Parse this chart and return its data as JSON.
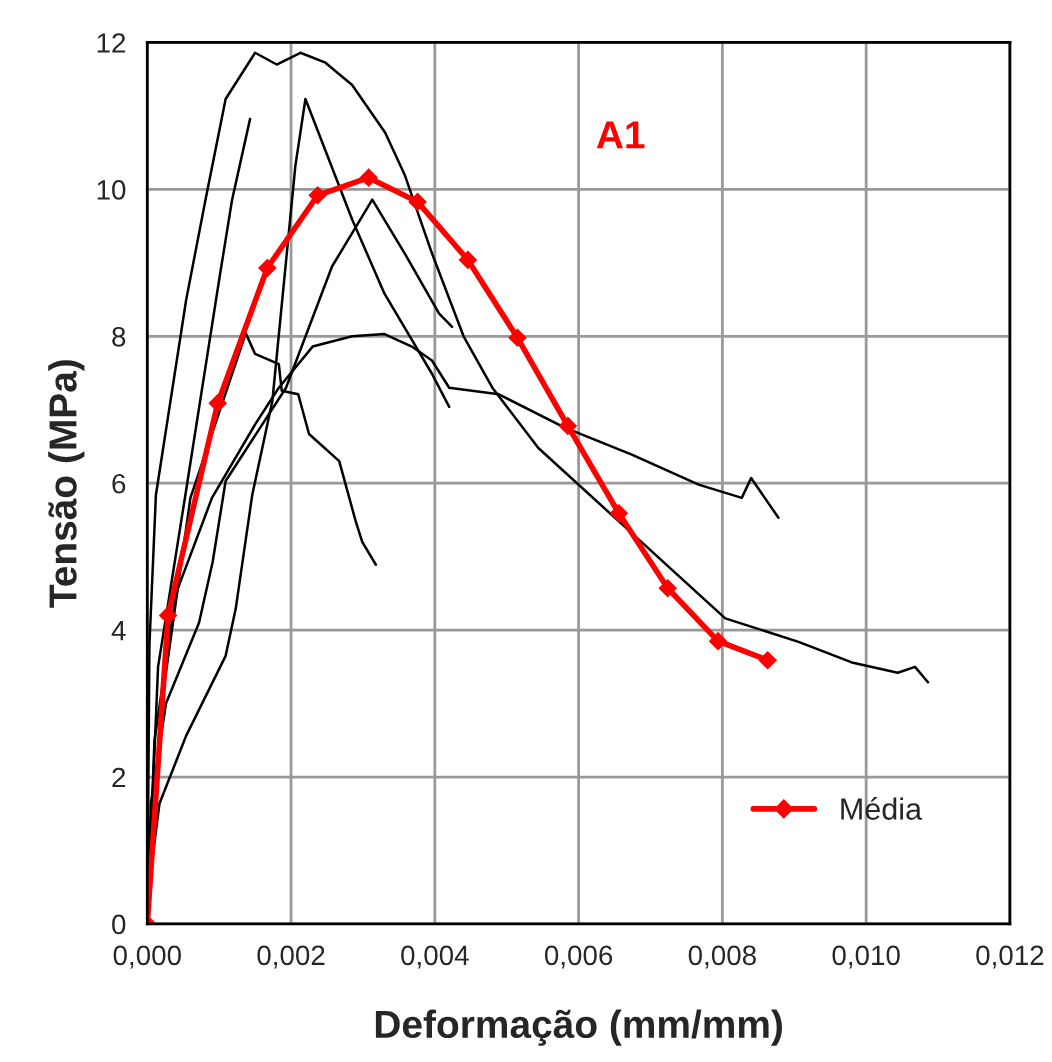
{
  "chart_data": {
    "type": "line",
    "xlabel": "Deformação (mm/mm)",
    "ylabel": "Tensão (MPa)",
    "annotations": [
      "A1"
    ],
    "xlim": [
      0,
      0.012
    ],
    "ylim": [
      0,
      12
    ],
    "xticks": [
      {
        "value": 0,
        "label": "0,000"
      },
      {
        "value": 0.002,
        "label": "0,002"
      },
      {
        "value": 0.004,
        "label": "0,004"
      },
      {
        "value": 0.006,
        "label": "0,006"
      },
      {
        "value": 0.008,
        "label": "0,008"
      },
      {
        "value": 0.01,
        "label": "0,010"
      },
      {
        "value": 0.012,
        "label": "0,012"
      }
    ],
    "yticks": [
      0,
      2,
      4,
      6,
      8,
      10,
      12
    ],
    "grid": true,
    "legend": "bottom right",
    "series": [
      {
        "color": "#000000",
        "marker": "none",
        "x": [
          0,
          3e-05,
          0.00012,
          0.00054,
          0.00081,
          0.00109,
          0.0015,
          0.0018,
          0.00213,
          0.00247,
          0.00285,
          0.00331,
          0.00358,
          0.00396,
          0.0044,
          0.0048,
          0.00544,
          0.00656,
          0.00804,
          0.00906,
          0.0098,
          0.01044,
          0.01068,
          0.01086
        ],
        "values": [
          0,
          3.8,
          5.84,
          8.49,
          9.86,
          11.23,
          11.86,
          11.7,
          11.86,
          11.73,
          11.42,
          10.77,
          10.2,
          9.13,
          8.0,
          7.3,
          6.48,
          5.48,
          4.16,
          3.84,
          3.56,
          3.42,
          3.5,
          3.29
        ]
      },
      {
        "color": "#000000",
        "marker": "none",
        "x": [
          0,
          0.00015,
          0.00053,
          0.001,
          0.00118,
          0.00143
        ],
        "values": [
          0,
          3.5,
          5.84,
          8.77,
          9.86,
          10.96
        ]
      },
      {
        "color": "#000000",
        "marker": "none",
        "x": [
          0,
          0.0002,
          0.0006,
          0.00137,
          0.0015,
          0.00183,
          0.00187,
          0.0021,
          0.00225,
          0.00267,
          0.0029,
          0.00299,
          0.00318
        ],
        "values": [
          0,
          3.0,
          5.8,
          8.04,
          7.76,
          7.62,
          7.26,
          7.21,
          6.67,
          6.3,
          5.48,
          5.2,
          4.89
        ]
      },
      {
        "color": "#000000",
        "marker": "none",
        "x": [
          0,
          5e-05,
          0.00017,
          0.00054,
          0.00109,
          0.00123,
          0.00146,
          0.00174,
          0.00206,
          0.0022,
          0.00285,
          0.0033,
          0.00396,
          0.0042
        ],
        "values": [
          0,
          0.73,
          1.64,
          2.56,
          3.65,
          4.29,
          5.84,
          7.12,
          10.32,
          11.23,
          9.59,
          8.58,
          7.49,
          7.04
        ]
      },
      {
        "color": "#000000",
        "marker": "none",
        "x": [
          0,
          5e-05,
          0.00026,
          0.00072,
          0.00091,
          0.00109,
          0.00193,
          0.00257,
          0.00313,
          0.00358,
          0.00406,
          0.00424
        ],
        "values": [
          0,
          1.64,
          3.0,
          4.1,
          4.93,
          6.03,
          7.3,
          8.95,
          9.86,
          9.13,
          8.31,
          8.13
        ]
      },
      {
        "color": "#000000",
        "marker": "none",
        "x": [
          0,
          0.0001,
          0.0004,
          0.0009,
          0.0015,
          0.00183,
          0.0023,
          0.00285,
          0.0033,
          0.00368,
          0.00396,
          0.0042,
          0.00489,
          0.0058,
          0.00674,
          0.00767,
          0.00827,
          0.0084,
          0.00878
        ],
        "values": [
          0,
          2.5,
          4.5,
          5.8,
          6.8,
          7.3,
          7.86,
          8.0,
          8.03,
          7.86,
          7.67,
          7.3,
          7.21,
          6.76,
          6.39,
          5.98,
          5.8,
          6.07,
          5.53
        ]
      },
      {
        "name": "Média",
        "color": "#ff0000",
        "marker": "diamond",
        "x": [
          0,
          0.00029,
          0.00098,
          0.00167,
          0.00237,
          0.00308,
          0.00376,
          0.00446,
          0.00515,
          0.00585,
          0.00656,
          0.00724,
          0.00794,
          0.00863
        ],
        "values": [
          0,
          4.2,
          7.09,
          8.93,
          9.92,
          10.16,
          9.83,
          9.04,
          7.98,
          6.78,
          5.59,
          4.57,
          3.85,
          3.59
        ]
      }
    ]
  }
}
